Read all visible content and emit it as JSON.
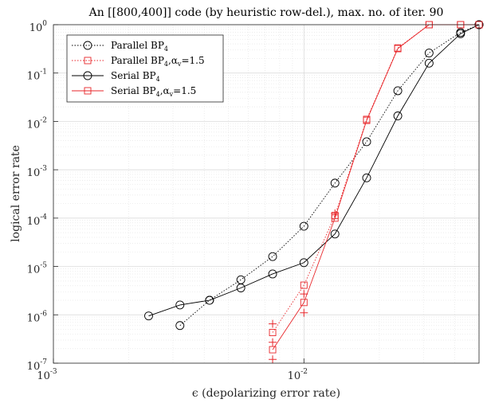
{
  "chart_data": {
    "type": "line",
    "title": "An [[800,400]] code (by heuristic row-del.), max. no. of iter. 90",
    "xlabel": "ϵ (depolarizing error rate)",
    "ylabel": "logical error rate",
    "x_scale": "log",
    "y_scale": "log",
    "xlim": [
      0.001,
      0.05
    ],
    "ylim": [
      1e-07,
      1
    ],
    "grid": true,
    "legend_position": "top-left",
    "x_ticks": [
      {
        "base": "10",
        "exp": "-3",
        "value": 0.001
      },
      {
        "base": "10",
        "exp": "-2",
        "value": 0.01
      }
    ],
    "y_ticks": [
      {
        "base": "10",
        "exp": "0",
        "value": 1
      },
      {
        "base": "10",
        "exp": "-1",
        "value": 0.1
      },
      {
        "base": "10",
        "exp": "-2",
        "value": 0.01
      },
      {
        "base": "10",
        "exp": "-3",
        "value": 0.001
      },
      {
        "base": "10",
        "exp": "-4",
        "value": 0.0001
      },
      {
        "base": "10",
        "exp": "-5",
        "value": 1e-05
      },
      {
        "base": "10",
        "exp": "-6",
        "value": 1e-06
      },
      {
        "base": "10",
        "exp": "-7",
        "value": 1e-07
      }
    ],
    "series": [
      {
        "name": "Parallel BP",
        "name_sub": "4",
        "name_suffix": "",
        "color": "#000000",
        "line": "dotted",
        "marker": "circle",
        "points": [
          [
            0.0032,
            6e-07
          ],
          [
            0.0042,
            2e-06
          ],
          [
            0.0056,
            5.3e-06
          ],
          [
            0.0075,
            1.6e-05
          ],
          [
            0.01,
            6.8e-05
          ],
          [
            0.0133,
            0.00053
          ],
          [
            0.0178,
            0.0038
          ],
          [
            0.0237,
            0.043
          ],
          [
            0.0316,
            0.26
          ],
          [
            0.0422,
            0.69
          ],
          [
            0.05,
            1
          ]
        ]
      },
      {
        "name": "Parallel BP",
        "name_sub": "4",
        "name_suffix": ",α",
        "name_suffix_sub": "v",
        "name_suffix_tail": "=1.5",
        "color": "#e8262a",
        "line": "dotted",
        "marker": "square",
        "points": [
          [
            0.0075,
            4.3e-07
          ],
          [
            0.01,
            4.1e-06
          ],
          [
            0.0133,
            0.000113
          ],
          [
            0.0178,
            0.011
          ],
          [
            0.0237,
            0.33
          ],
          [
            0.0316,
            1
          ],
          [
            0.0422,
            1
          ],
          [
            0.05,
            1
          ]
        ]
      },
      {
        "name": "Serial BP",
        "name_sub": "4",
        "name_suffix": "",
        "color": "#000000",
        "line": "solid",
        "marker": "circle",
        "points": [
          [
            0.0024,
            9.5e-07
          ],
          [
            0.0032,
            1.6e-06
          ],
          [
            0.0042,
            2e-06
          ],
          [
            0.0056,
            3.6e-06
          ],
          [
            0.0075,
            7e-06
          ],
          [
            0.01,
            1.2e-05
          ],
          [
            0.0133,
            4.7e-05
          ],
          [
            0.0178,
            0.00068
          ],
          [
            0.0237,
            0.013
          ],
          [
            0.0316,
            0.16
          ],
          [
            0.0422,
            0.65
          ],
          [
            0.05,
            1
          ]
        ]
      },
      {
        "name": "Serial BP",
        "name_sub": "4",
        "name_suffix": ",α",
        "name_suffix_sub": "v",
        "name_suffix_tail": "=1.5",
        "color": "#e8262a",
        "line": "solid",
        "marker": "square",
        "points": [
          [
            0.0075,
            1.9e-07
          ],
          [
            0.01,
            1.8e-06
          ],
          [
            0.0133,
            0.0001
          ],
          [
            0.0178,
            0.0105
          ],
          [
            0.0237,
            0.32
          ],
          [
            0.0316,
            1
          ],
          [
            0.0422,
            1
          ],
          [
            0.05,
            1
          ]
        ]
      }
    ],
    "error_marks": {
      "color": "#e8262a",
      "marker": "plus",
      "points": [
        [
          0.0075,
          6.5e-07
        ],
        [
          0.0075,
          2.7e-07
        ],
        [
          0.0075,
          1.2e-07
        ],
        [
          0.01,
          2.7e-06
        ],
        [
          0.01,
          1.1e-06
        ],
        [
          0.0133,
          0.000125
        ]
      ]
    }
  }
}
